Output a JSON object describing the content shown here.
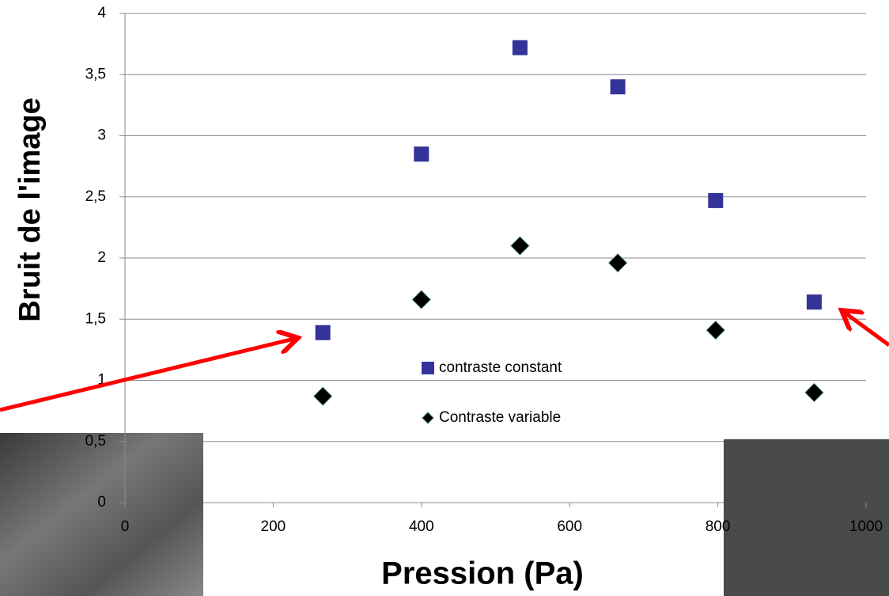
{
  "chart_data": {
    "type": "scatter",
    "x_label": "Pression (Pa)",
    "y_label": "Bruit de l'image",
    "x": [
      267,
      400,
      533,
      665,
      797,
      930
    ],
    "series": [
      {
        "name": "contraste constant",
        "color": "#333399",
        "marker": "square",
        "values": [
          1.39,
          2.85,
          3.72,
          3.4,
          2.47,
          1.64
        ]
      },
      {
        "name": "Contraste variable",
        "color": "#000000",
        "marker": "diamond",
        "values": [
          0.87,
          1.66,
          2.1,
          1.96,
          1.41,
          0.9
        ]
      }
    ],
    "xlim": [
      0,
      1000
    ],
    "xticks": [
      0,
      200,
      400,
      600,
      800,
      1000
    ],
    "ylim": [
      0,
      4
    ],
    "yticks": [
      0,
      {
        "value": 0.5,
        "label": "0,5"
      },
      1,
      {
        "value": 1.5,
        "label": "1,5"
      },
      2,
      {
        "value": 2.5,
        "label": "2,5"
      },
      3,
      {
        "value": 3.5,
        "label": "3,5"
      },
      4
    ],
    "grid": true
  }
}
